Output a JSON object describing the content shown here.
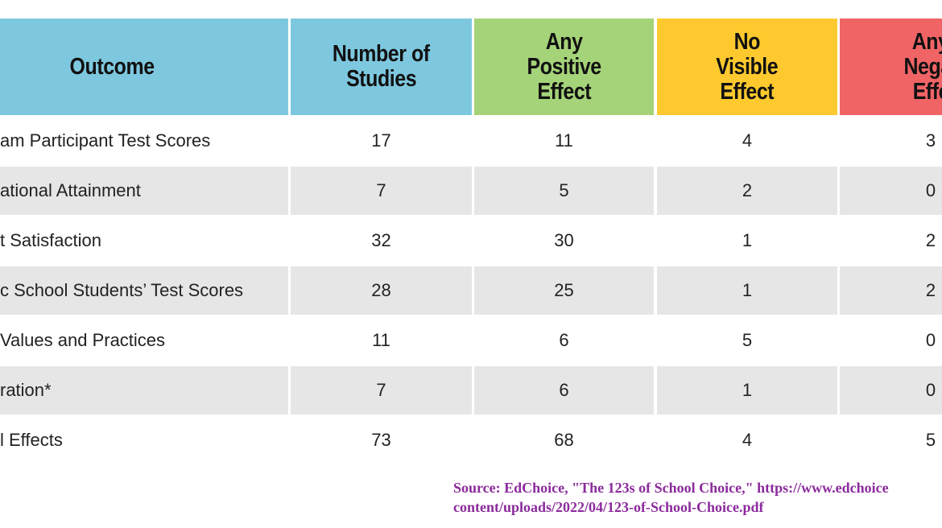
{
  "table": {
    "headers": [
      [
        "Outcome"
      ],
      [
        "Number of",
        "Studies"
      ],
      [
        "Any",
        "Positive",
        "Effect"
      ],
      [
        "No",
        "Visible",
        "Effect"
      ],
      [
        "Any",
        "Negat",
        "Effe"
      ]
    ],
    "header_colors": [
      "#7ec8df",
      "#7ec8df",
      "#a5d379",
      "#fdc92e",
      "#f06466"
    ],
    "rows": [
      [
        "am Participant Test Scores",
        17,
        11,
        4,
        3
      ],
      [
        "ational Attainment",
        7,
        5,
        2,
        0
      ],
      [
        "t Satisfaction",
        32,
        30,
        1,
        2
      ],
      [
        "c School Students’ Test Scores",
        28,
        25,
        1,
        2
      ],
      [
        "Values and Practices",
        11,
        6,
        5,
        0
      ],
      [
        "ration*",
        7,
        6,
        1,
        0
      ],
      [
        "l Effects",
        73,
        68,
        4,
        5
      ]
    ]
  },
  "source": [
    "Source: EdChoice, \"The 123s of School Choice,\" https://www.edchoice",
    "content/uploads/2022/04/123-of-School-Choice.pdf"
  ]
}
